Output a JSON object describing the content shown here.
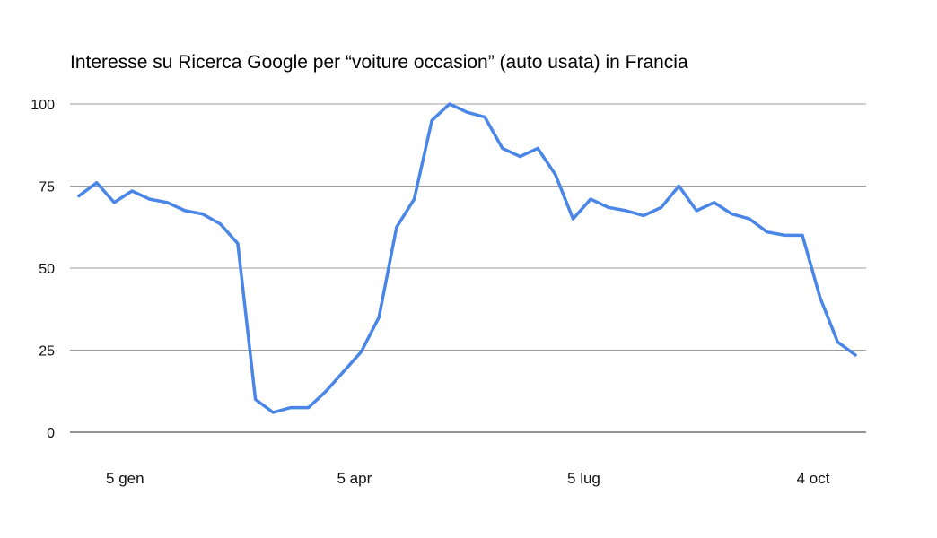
{
  "chart_data": {
    "type": "line",
    "title": "Interesse su Ricerca Google per “voiture occasion” (auto usata) in Francia",
    "xlabel": "",
    "ylabel": "",
    "ylim": [
      0,
      100
    ],
    "y_ticks": [
      "0",
      "25",
      "50",
      "75",
      "100"
    ],
    "x_tick_labels": [
      "5 gen",
      "5 apr",
      "5 lug",
      "4 oct"
    ],
    "x_tick_positions": [
      2,
      15,
      28,
      41
    ],
    "grid": true,
    "legend": "none",
    "line_color": "#4a86e8",
    "grid_color": "#9e9e9e",
    "x": [
      0,
      1,
      2,
      3,
      4,
      5,
      6,
      7,
      8,
      9,
      10,
      11,
      12,
      13,
      14,
      15,
      16,
      17,
      18,
      19,
      20,
      21,
      22,
      23,
      24,
      25,
      26,
      27,
      28,
      29,
      30,
      31,
      32,
      33,
      34,
      35,
      36,
      37,
      38,
      39,
      40,
      41,
      42,
      43,
      44
    ],
    "series": [
      {
        "values": [
          72,
          76,
          70,
          73.5,
          71,
          70,
          67.5,
          66.5,
          63.5,
          57.5,
          10,
          6,
          7.5,
          7.5,
          12.5,
          18.5,
          24.5,
          35,
          62.5,
          71,
          95,
          100,
          97.5,
          96,
          86.5,
          84,
          86.5,
          78.5,
          65,
          71,
          68.5,
          67.5,
          66,
          68.5,
          75,
          67.5,
          70,
          66.5,
          65,
          61,
          60,
          60,
          41,
          27.5,
          23.5
        ]
      }
    ]
  }
}
